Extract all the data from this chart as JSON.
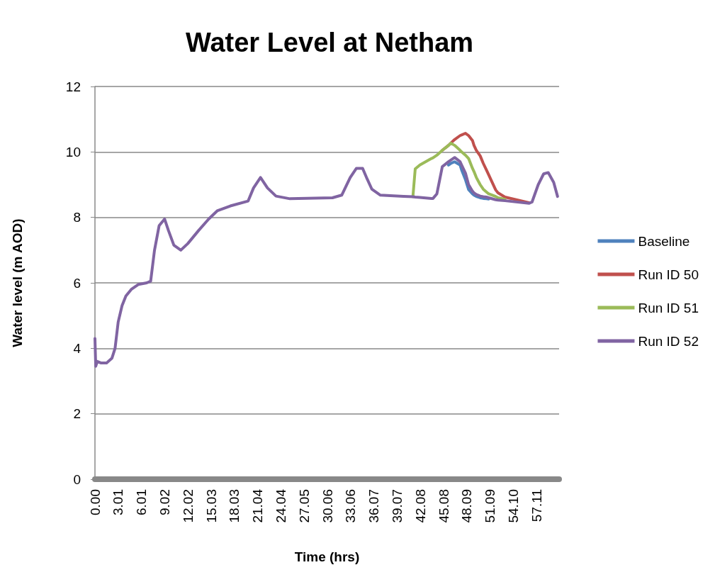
{
  "chart_data": {
    "type": "line",
    "title": "Water Level at Netham",
    "xlabel": "Time (hrs)",
    "ylabel": "Water level (m AOD)",
    "x": [
      0,
      0.1,
      0.3,
      0.8,
      1.5,
      2.2,
      2.6,
      3.0,
      3.5,
      4.0,
      4.7,
      5.6,
      6.7,
      7.2,
      7.7,
      8.3,
      9.0,
      9.5,
      10.2,
      11.1,
      12.0,
      13.4,
      14.7,
      15.8,
      17.5,
      19.8,
      20.5,
      21.4,
      22.3,
      23.4,
      25.2,
      30.7,
      31.9,
      33.0,
      33.8,
      34.6,
      35.1,
      35.8,
      36.9,
      39.9,
      41.1,
      41.4,
      42.0,
      43.5,
      43.7,
      44.2,
      44.9,
      45.7,
      46.0,
      46.5,
      47.2,
      47.4,
      47.9,
      48.3,
      48.8,
      49.0,
      49.3,
      49.8,
      50.2,
      50.6,
      50.9,
      51.8,
      52.1,
      53.0,
      56.1,
      56.5,
      57.3,
      58.0,
      58.6,
      59.3,
      59.8
    ],
    "series": [
      {
        "name": "Baseline",
        "color": "#4f81bd",
        "values": [
          null,
          null,
          null,
          null,
          null,
          null,
          null,
          null,
          null,
          null,
          null,
          null,
          null,
          null,
          null,
          null,
          null,
          null,
          null,
          null,
          null,
          null,
          null,
          null,
          null,
          null,
          null,
          null,
          null,
          null,
          null,
          null,
          null,
          null,
          null,
          null,
          null,
          null,
          null,
          null,
          null,
          null,
          null,
          null,
          null,
          null,
          null,
          9.6,
          9.65,
          9.7,
          9.6,
          9.45,
          9.15,
          8.85,
          8.72,
          8.68,
          8.64,
          8.6,
          8.58,
          8.57,
          8.56,
          null,
          null,
          null,
          null,
          null,
          null,
          null,
          null,
          null,
          null
        ]
      },
      {
        "name": "Run ID 50",
        "color": "#c0504d",
        "values": [
          null,
          null,
          null,
          null,
          null,
          null,
          null,
          null,
          null,
          null,
          null,
          null,
          null,
          null,
          null,
          null,
          null,
          null,
          null,
          null,
          null,
          null,
          null,
          null,
          null,
          null,
          null,
          null,
          null,
          null,
          null,
          null,
          null,
          null,
          null,
          null,
          null,
          null,
          null,
          null,
          null,
          null,
          null,
          null,
          null,
          null,
          10.05,
          10.2,
          10.27,
          10.38,
          10.5,
          10.52,
          10.57,
          10.5,
          10.35,
          10.2,
          10.05,
          9.88,
          9.65,
          9.45,
          9.3,
          8.84,
          8.75,
          8.62,
          8.45,
          null,
          null,
          null,
          null,
          null,
          null
        ]
      },
      {
        "name": "Run ID 51",
        "color": "#9bbb59",
        "values": [
          null,
          null,
          null,
          null,
          null,
          null,
          null,
          null,
          null,
          null,
          null,
          null,
          null,
          null,
          null,
          null,
          null,
          null,
          null,
          null,
          null,
          null,
          null,
          null,
          null,
          null,
          null,
          null,
          null,
          null,
          null,
          null,
          null,
          null,
          null,
          null,
          null,
          null,
          null,
          null,
          8.63,
          9.48,
          9.6,
          9.8,
          9.82,
          9.9,
          10.05,
          10.2,
          10.27,
          10.2,
          10.05,
          10.0,
          9.9,
          9.8,
          9.5,
          9.4,
          9.22,
          9.0,
          8.86,
          8.78,
          8.72,
          8.64,
          8.6,
          8.55,
          null,
          null,
          null,
          null,
          null,
          null,
          null
        ]
      },
      {
        "name": "Run ID 52",
        "color": "#8064a2",
        "values": [
          4.3,
          3.45,
          3.6,
          3.55,
          3.55,
          3.7,
          4.0,
          4.8,
          5.3,
          5.6,
          5.8,
          5.95,
          6.0,
          6.05,
          7.0,
          7.75,
          7.95,
          7.6,
          7.15,
          7.0,
          7.2,
          7.6,
          7.95,
          8.2,
          8.35,
          8.5,
          8.9,
          9.22,
          8.9,
          8.65,
          8.57,
          8.6,
          8.68,
          9.22,
          9.5,
          9.5,
          9.22,
          8.86,
          8.68,
          8.64,
          8.63,
          8.62,
          8.61,
          8.58,
          8.58,
          8.72,
          9.55,
          9.7,
          9.75,
          9.83,
          9.7,
          9.6,
          9.35,
          9.0,
          8.8,
          8.75,
          8.7,
          8.65,
          8.63,
          8.62,
          8.6,
          8.54,
          8.53,
          8.51,
          8.43,
          8.47,
          9.0,
          9.33,
          9.37,
          9.07,
          8.64
        ]
      }
    ],
    "xlim": [
      0,
      60
    ],
    "xticks": [
      {
        "value": 0,
        "label": "0.00"
      },
      {
        "value": 3.01,
        "label": "3.01"
      },
      {
        "value": 6.01,
        "label": "6.01"
      },
      {
        "value": 9.02,
        "label": "9.02"
      },
      {
        "value": 12.02,
        "label": "12.02"
      },
      {
        "value": 15.03,
        "label": "15.03"
      },
      {
        "value": 18.03,
        "label": "18.03"
      },
      {
        "value": 21.04,
        "label": "21.04"
      },
      {
        "value": 24.04,
        "label": "24.04"
      },
      {
        "value": 27.05,
        "label": "27.05"
      },
      {
        "value": 30.06,
        "label": "30.06"
      },
      {
        "value": 33.06,
        "label": "33.06"
      },
      {
        "value": 36.07,
        "label": "36.07"
      },
      {
        "value": 39.07,
        "label": "39.07"
      },
      {
        "value": 42.08,
        "label": "42.08"
      },
      {
        "value": 45.08,
        "label": "45.08"
      },
      {
        "value": 48.09,
        "label": "48.09"
      },
      {
        "value": 51.09,
        "label": "51.09"
      },
      {
        "value": 54.1,
        "label": "54.10"
      },
      {
        "value": 57.11,
        "label": "57.11"
      }
    ],
    "ylim": [
      0,
      12
    ],
    "yticks": [
      0,
      2,
      4,
      6,
      8,
      10,
      12
    ],
    "grid": "y",
    "legend": "right",
    "marker": "none",
    "line_style": "solid"
  }
}
